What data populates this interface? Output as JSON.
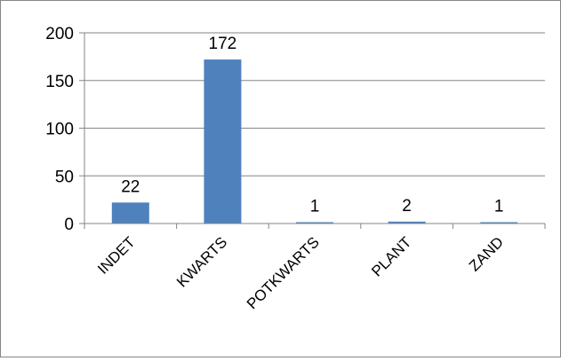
{
  "chart_data": {
    "type": "bar",
    "title": "",
    "xlabel": "",
    "ylabel": "",
    "categories": [
      "INDET",
      "KWARTS",
      "POTKWARTS",
      "PLANT",
      "ZAND"
    ],
    "values": [
      22,
      172,
      1,
      2,
      1
    ],
    "data_labels": [
      "22",
      "172",
      "1",
      "2",
      "1"
    ],
    "y_ticks": [
      0,
      50,
      100,
      150,
      200
    ],
    "ylim": [
      0,
      200
    ],
    "grid": true,
    "legend": "none",
    "bar_color": "#4f81bd",
    "grid_color": "#868686"
  }
}
